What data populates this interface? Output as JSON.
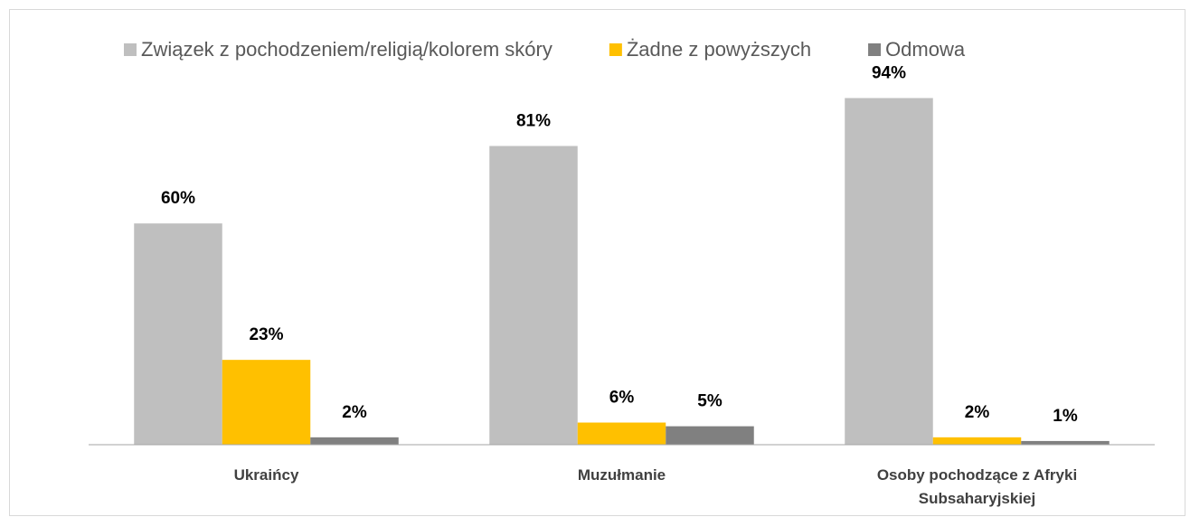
{
  "chart_data": {
    "type": "bar",
    "categories": [
      "Ukraińcy",
      "Muzułmanie",
      "Osoby pochodzące z Afryki Subsaharyjskiej"
    ],
    "series": [
      {
        "name": "Związek z pochodzeniem/religią/kolorem skóry",
        "color": "#bfbfbf",
        "values": [
          60,
          81,
          94
        ],
        "value_labels": [
          "60%",
          "81%",
          "94%"
        ]
      },
      {
        "name": "Żadne z powyższych",
        "color": "#ffc000",
        "values": [
          23,
          6,
          2
        ],
        "value_labels": [
          "23%",
          "6%",
          "2%"
        ]
      },
      {
        "name": "Odmowa",
        "color": "#808080",
        "values": [
          2,
          5,
          1
        ],
        "value_labels": [
          "2%",
          "5%",
          "1%"
        ]
      }
    ],
    "ylim": [
      0,
      100
    ],
    "legend": "top"
  }
}
